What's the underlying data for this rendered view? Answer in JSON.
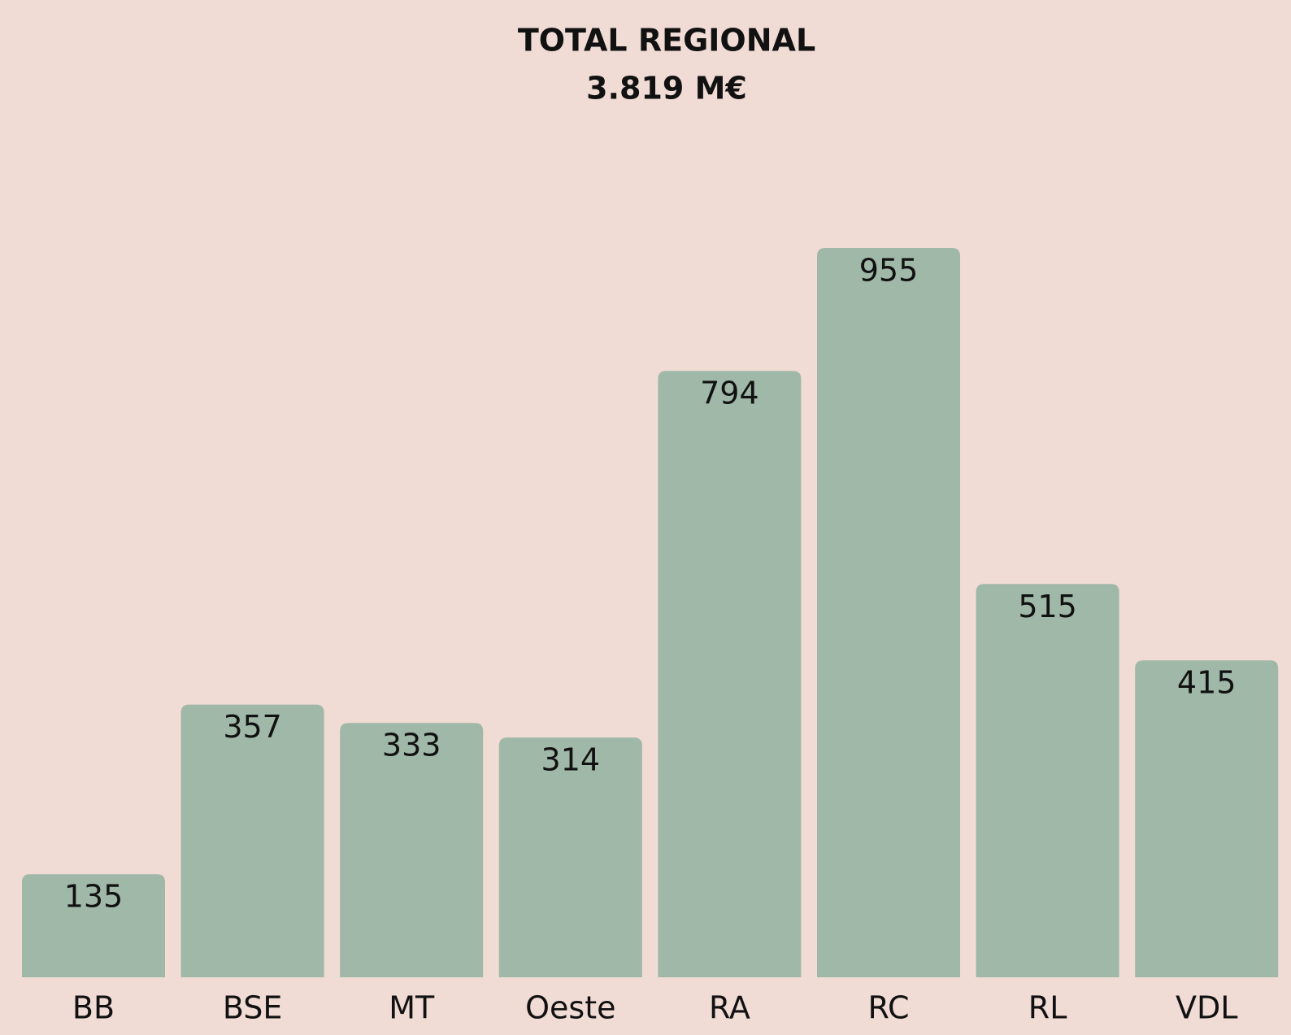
{
  "chart_data": {
    "type": "bar",
    "title": "TOTAL REGIONAL",
    "subtitle": "3.819 M€",
    "categories": [
      "BB",
      "BSE",
      "MT",
      "Oeste",
      "RA",
      "RC",
      "RL",
      "VDL"
    ],
    "values": [
      135,
      357,
      333,
      314,
      794,
      955,
      515,
      415
    ],
    "color": "#a0b8a8",
    "background": "#f0dbd5"
  }
}
